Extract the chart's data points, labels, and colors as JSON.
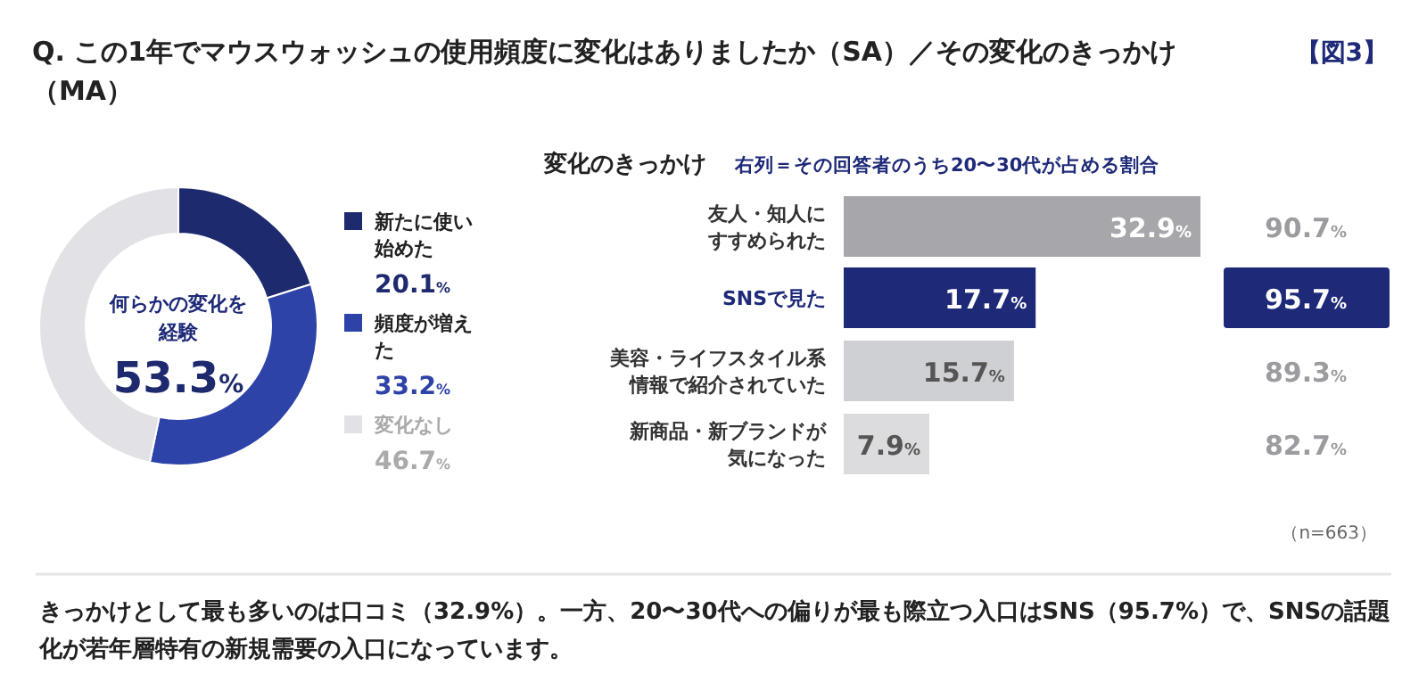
{
  "chart_data": [
    {
      "type": "donut",
      "title": "Q. この1年でマウスウォッシュの使用頻度に変化はありましたか（SA）／その変化のきっかけ（MA）",
      "categories": [
        "新たに使い始めた",
        "頻度が増えた",
        "変化なし"
      ],
      "values": [
        20.1,
        33.2,
        46.7
      ],
      "colors": [
        "#1e2a6e",
        "#2e43a8",
        "#e2e2e6"
      ],
      "legend": "right",
      "value_labels": [
        "20.1%",
        "33.2%",
        "46.7%"
      ],
      "annotations": [
        "【図3】",
        "何らかの変化を経験",
        "53.3%",
        "きっかけとして最も多いのは口コミ（32.9%）。一方、20〜30代への偏りが最も際立つ入口はSNS（95.7%）で、SNSの話題化が若年層特有の新規需要の入口になっています。"
      ]
    },
    {
      "type": "bar",
      "orientation": "horizontal",
      "title": "変化のきっかけ",
      "subtitle": "右列＝その回答者のうち20〜30代が占める割合",
      "categories": [
        "友人・知人にすすめられた",
        "SNSで見た",
        "美容・ライフスタイル系情報で紹介されていた",
        "新商品・新ブランドが気になった"
      ],
      "values": [
        32.9,
        17.7,
        15.7,
        7.9
      ],
      "colors": [
        "#a7a7ab",
        "#1e2a78",
        "#cfd0d4",
        "#dcdcdf"
      ],
      "value_labels": [
        "32.9%",
        "17.7%",
        "15.7%",
        "7.9%"
      ],
      "annotations": [
        "（n=663）"
      ]
    },
    {
      "type": "other",
      "categories": [
        null,
        null,
        null,
        null
      ],
      "values": [
        90.7,
        95.7,
        89.3,
        82.7
      ],
      "colors": [
        null,
        "#1e2a78",
        null,
        null
      ],
      "value_labels": [
        "90.7%",
        "95.7%",
        "89.3%",
        "82.7%"
      ]
    }
  ]
}
